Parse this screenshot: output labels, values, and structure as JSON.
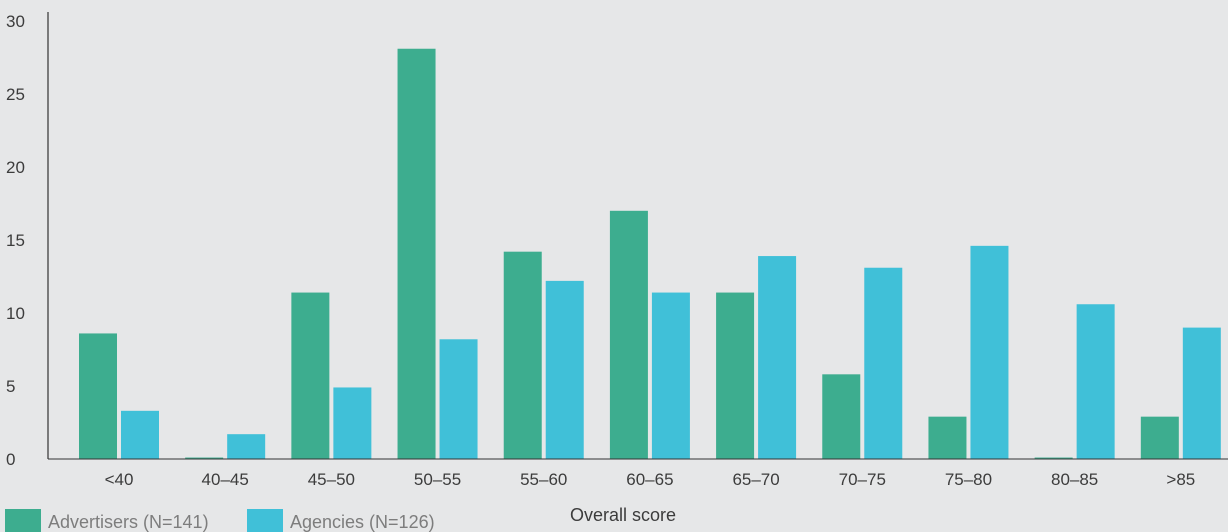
{
  "chart_data": {
    "type": "bar",
    "xlabel": "Overall score",
    "ylabel": "",
    "ylim": [
      0,
      30
    ],
    "yticks": [
      "0",
      "5",
      "10",
      "15",
      "20",
      "25",
      "30"
    ],
    "grid": false,
    "legend_position": "bottom-left",
    "categories": [
      "<40",
      "40–45",
      "45–50",
      "50–55",
      "55–60",
      "60–65",
      "65–70",
      "70–75",
      "75–80",
      "80–85",
      ">85"
    ],
    "series": [
      {
        "name": "Advertisers (N=141)",
        "color": "#3dad8f",
        "values": [
          8.6,
          0.1,
          11.4,
          28.1,
          14.2,
          17.0,
          11.4,
          5.8,
          2.9,
          0.1,
          2.9
        ]
      },
      {
        "name": "Agencies (N=126)",
        "color": "#40c0d8",
        "values": [
          3.3,
          1.7,
          4.9,
          8.2,
          12.2,
          11.4,
          13.9,
          13.1,
          14.6,
          10.6,
          9.0
        ]
      }
    ]
  }
}
